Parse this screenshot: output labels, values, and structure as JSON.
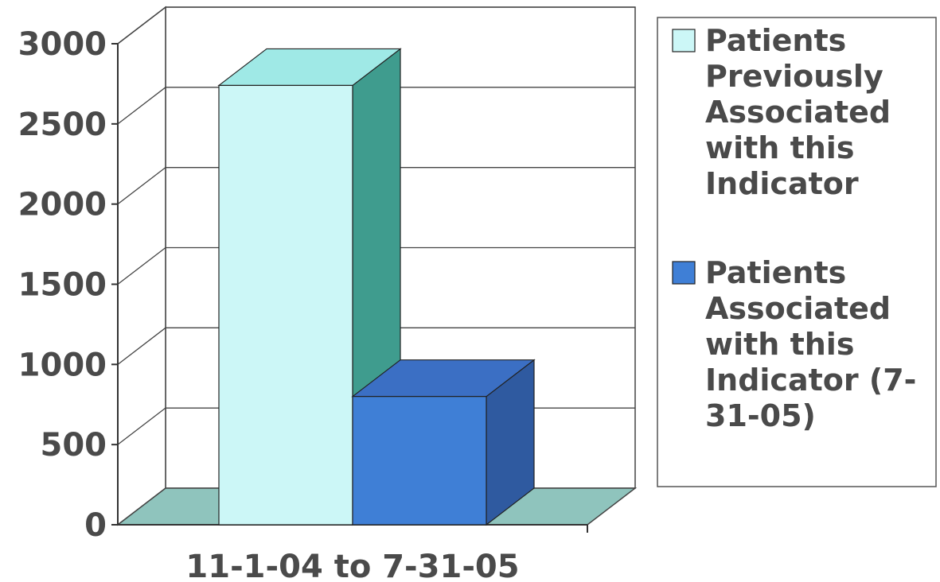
{
  "chart_data": {
    "type": "bar",
    "style": "3d-clustered-column",
    "categories": [
      "11-1-04 to 7-31-05"
    ],
    "series": [
      {
        "name": "Patients Previously Associated with this Indicator",
        "values": [
          2740
        ],
        "color": "#ccf7f7",
        "legend_lines": [
          "Patients",
          "Previously",
          "Associated",
          "with this",
          "Indicator"
        ]
      },
      {
        "name": "Patients Associated with this Indicator (7-31-05)",
        "values": [
          800
        ],
        "color": "#3f7fd6",
        "legend_lines": [
          "Patients",
          "Associated",
          "with this",
          "Indicator (7-",
          "31-05)"
        ]
      }
    ],
    "ylim": [
      0,
      3000
    ],
    "yticks": [
      0,
      500,
      1000,
      1500,
      2000,
      2500,
      3000
    ],
    "ytick_labels": [
      "0",
      "500",
      "1000",
      "1500",
      "2000",
      "2500",
      "3000"
    ],
    "grid": true,
    "legend_position": "right",
    "colors": {
      "wall": "#ffffff",
      "floor": "#8fc4bd",
      "axis": "#333333",
      "grid": "#444444",
      "text": "#4a4a4a"
    }
  }
}
